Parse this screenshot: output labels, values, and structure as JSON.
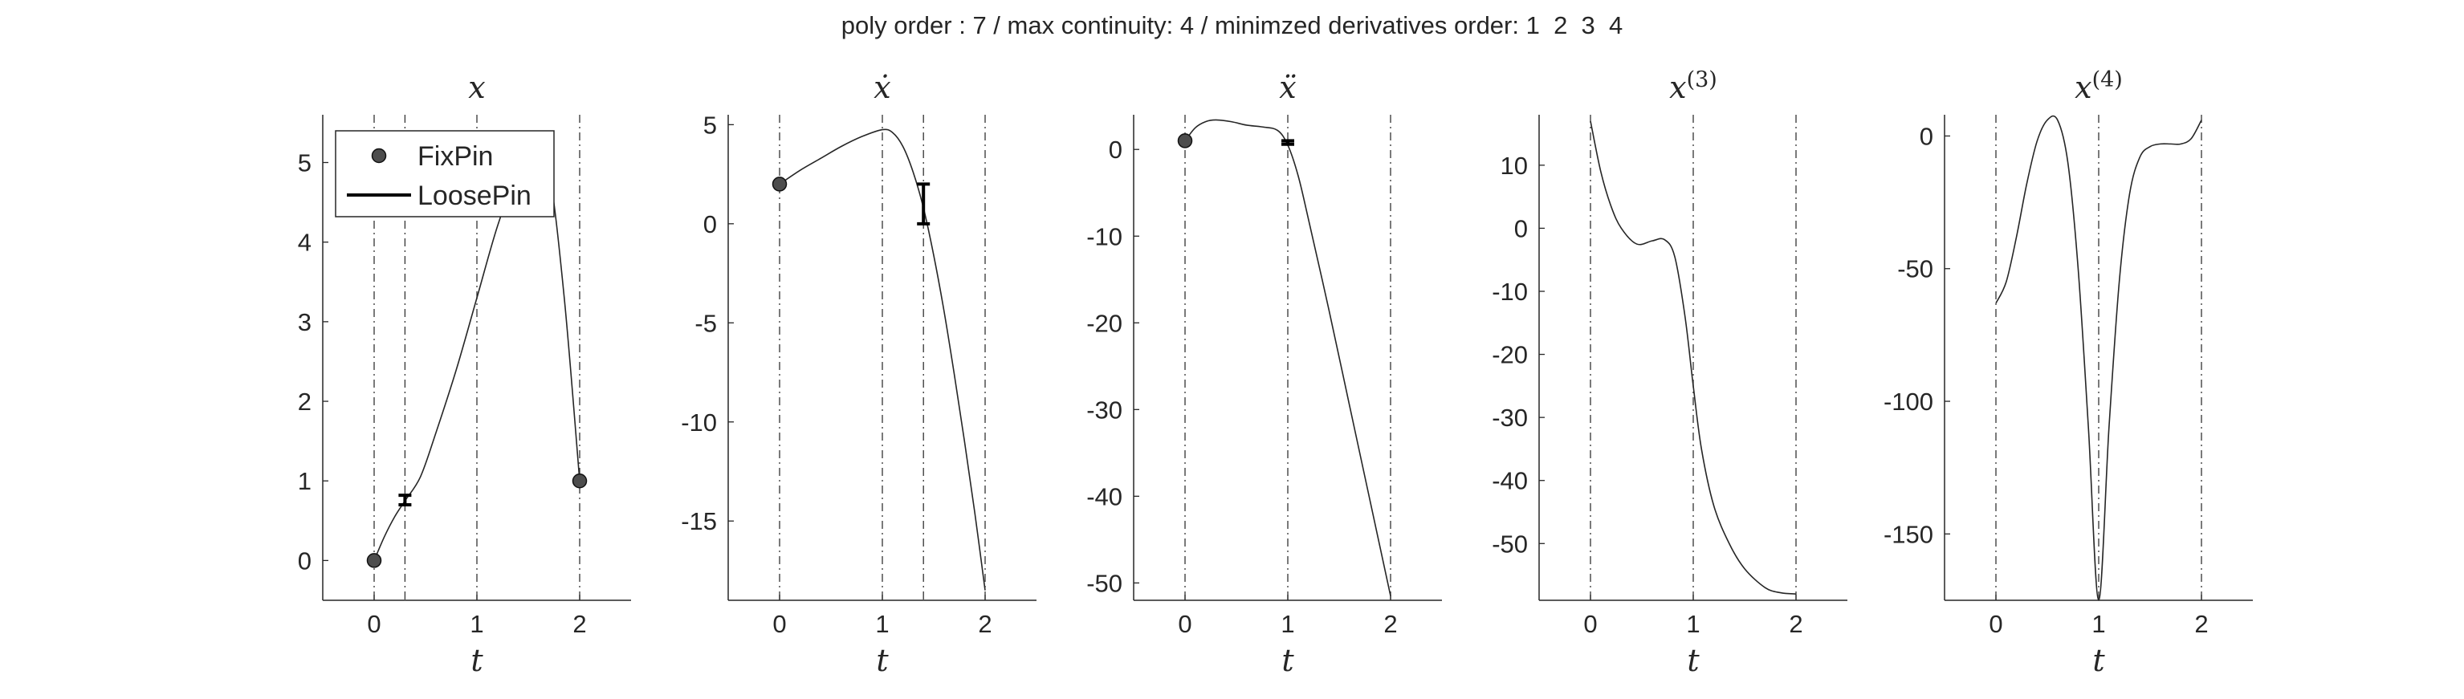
{
  "suptitle": "poly order : 7 / max continuity: 4 / minimzed derivatives order: 1  2  3  4",
  "legend": {
    "entries": [
      {
        "label": "FixPin",
        "marker": "circle"
      },
      {
        "label": "LoosePin",
        "marker": "line"
      }
    ],
    "placement": "upper-left of first subplot"
  },
  "colors": {
    "curve": "#262626",
    "marker_fill": "#4d4d4d",
    "guide": "#333333",
    "axis": "#262626"
  },
  "chart_data": [
    {
      "type": "line",
      "title": "x",
      "xlabel": "t",
      "xlim": [
        -0.5,
        2.5
      ],
      "ylim": [
        -0.5,
        5.6
      ],
      "grid": false,
      "xticks": [
        0,
        1,
        2
      ],
      "xtick_labels": [
        "0",
        "1",
        "2"
      ],
      "yticks": [
        0,
        1,
        2,
        3,
        4,
        5
      ],
      "ytick_labels": [
        "0",
        "1",
        "2",
        "3",
        "4",
        "5"
      ],
      "guides": [
        0,
        0.3,
        1,
        2
      ],
      "series": [
        {
          "x": [
            0,
            0.1,
            0.2,
            0.3,
            0.45,
            0.6,
            0.8,
            1.0,
            1.2,
            1.4,
            1.55,
            1.7,
            1.85,
            2.0
          ],
          "y": [
            0,
            0.3,
            0.55,
            0.75,
            1.05,
            1.6,
            2.4,
            3.3,
            4.2,
            4.9,
            5.25,
            4.9,
            3.3,
            1.0
          ]
        }
      ],
      "fix_pins": [
        {
          "x": 0,
          "y": 0
        },
        {
          "x": 2,
          "y": 1
        }
      ],
      "loose_pins": [
        {
          "x": 0.3,
          "y_low": 0.7,
          "y_high": 0.82
        }
      ]
    },
    {
      "type": "line",
      "title": "ẋ",
      "xlabel": "t",
      "xlim": [
        -0.5,
        2.5
      ],
      "ylim": [
        -19,
        5.5
      ],
      "grid": false,
      "xticks": [
        0,
        1,
        2
      ],
      "xtick_labels": [
        "0",
        "1",
        "2"
      ],
      "yticks": [
        -15,
        -10,
        -5,
        0,
        5
      ],
      "ytick_labels": [
        "-15",
        "-10",
        "-5",
        "0",
        "5"
      ],
      "guides": [
        0,
        1,
        1.4,
        2
      ],
      "series": [
        {
          "x": [
            0,
            0.2,
            0.4,
            0.6,
            0.8,
            1.0,
            1.1,
            1.2,
            1.3,
            1.4,
            1.5,
            1.6,
            1.7,
            1.8,
            1.9,
            2.0
          ],
          "y": [
            2.0,
            2.7,
            3.3,
            3.9,
            4.4,
            4.75,
            4.6,
            3.9,
            2.6,
            0.8,
            -1.6,
            -4.4,
            -7.6,
            -11.0,
            -14.6,
            -18.5
          ]
        }
      ],
      "fix_pins": [
        {
          "x": 0,
          "y": 2.0
        }
      ],
      "loose_pins": [
        {
          "x": 1.4,
          "y_low": 0,
          "y_high": 2
        }
      ]
    },
    {
      "type": "line",
      "title": "ẍ",
      "xlabel": "t",
      "xlim": [
        -0.5,
        2.5
      ],
      "ylim": [
        -52,
        4
      ],
      "grid": false,
      "xticks": [
        0,
        1,
        2
      ],
      "xtick_labels": [
        "0",
        "1",
        "2"
      ],
      "yticks": [
        -50,
        -40,
        -30,
        -20,
        -10,
        0
      ],
      "ytick_labels": [
        "-50",
        "-40",
        "-30",
        "-20",
        "-10",
        "0"
      ],
      "guides": [
        0,
        1,
        2
      ],
      "series": [
        {
          "x": [
            0,
            0.1,
            0.2,
            0.3,
            0.45,
            0.6,
            0.75,
            0.9,
            1.0,
            1.1,
            1.2,
            1.4,
            1.6,
            1.8,
            2.0
          ],
          "y": [
            1.0,
            2.5,
            3.2,
            3.4,
            3.2,
            2.8,
            2.6,
            2.2,
            0.5,
            -3.0,
            -8.0,
            -18.5,
            -29.5,
            -40.5,
            -51.5
          ]
        }
      ],
      "fix_pins": [
        {
          "x": 0,
          "y": 1.0
        }
      ],
      "loose_pins": [
        {
          "x": 1.0,
          "y_low": 0.6,
          "y_high": 1.0
        }
      ]
    },
    {
      "type": "line",
      "title": "x(3)",
      "xlabel": "t",
      "xlim": [
        -0.5,
        2.5
      ],
      "ylim": [
        -59,
        18
      ],
      "grid": false,
      "xticks": [
        0,
        1,
        2
      ],
      "xtick_labels": [
        "0",
        "1",
        "2"
      ],
      "yticks": [
        -50,
        -40,
        -30,
        -20,
        -10,
        0,
        10
      ],
      "ytick_labels": [
        "-50",
        "-40",
        "-30",
        "-20",
        "-10",
        "0",
        "10"
      ],
      "guides": [
        0,
        1,
        2
      ],
      "series": [
        {
          "x": [
            0,
            0.1,
            0.2,
            0.3,
            0.45,
            0.6,
            0.72,
            0.82,
            0.92,
            1.0,
            1.08,
            1.2,
            1.35,
            1.5,
            1.7,
            1.85,
            2.0
          ],
          "y": [
            17,
            9,
            3.5,
            0,
            -2.5,
            -2,
            -1.8,
            -4.5,
            -14,
            -25,
            -35,
            -44,
            -50,
            -54,
            -57,
            -57.8,
            -58
          ]
        }
      ],
      "fix_pins": [],
      "loose_pins": []
    },
    {
      "type": "line",
      "title": "x(4)",
      "xlabel": "t",
      "xlim": [
        -0.5,
        2.5
      ],
      "ylim": [
        -175,
        8
      ],
      "grid": false,
      "xticks": [
        0,
        1,
        2
      ],
      "xtick_labels": [
        "0",
        "1",
        "2"
      ],
      "yticks": [
        -150,
        -100,
        -50,
        0
      ],
      "ytick_labels": [
        "-150",
        "-100",
        "-50",
        "0"
      ],
      "guides": [
        0,
        1,
        2
      ],
      "series": [
        {
          "x": [
            0,
            0.1,
            0.2,
            0.3,
            0.4,
            0.5,
            0.6,
            0.7,
            0.8,
            0.9,
            1.0,
            1.1,
            1.2,
            1.3,
            1.4,
            1.5,
            1.6,
            1.7,
            1.8,
            1.9,
            2.0
          ],
          "y": [
            -63,
            -55,
            -38,
            -18,
            -2,
            6,
            6,
            -10,
            -50,
            -110,
            -175,
            -110,
            -55,
            -22,
            -8,
            -4,
            -3,
            -3,
            -3,
            -1,
            6
          ]
        }
      ],
      "fix_pins": [],
      "loose_pins": []
    }
  ]
}
